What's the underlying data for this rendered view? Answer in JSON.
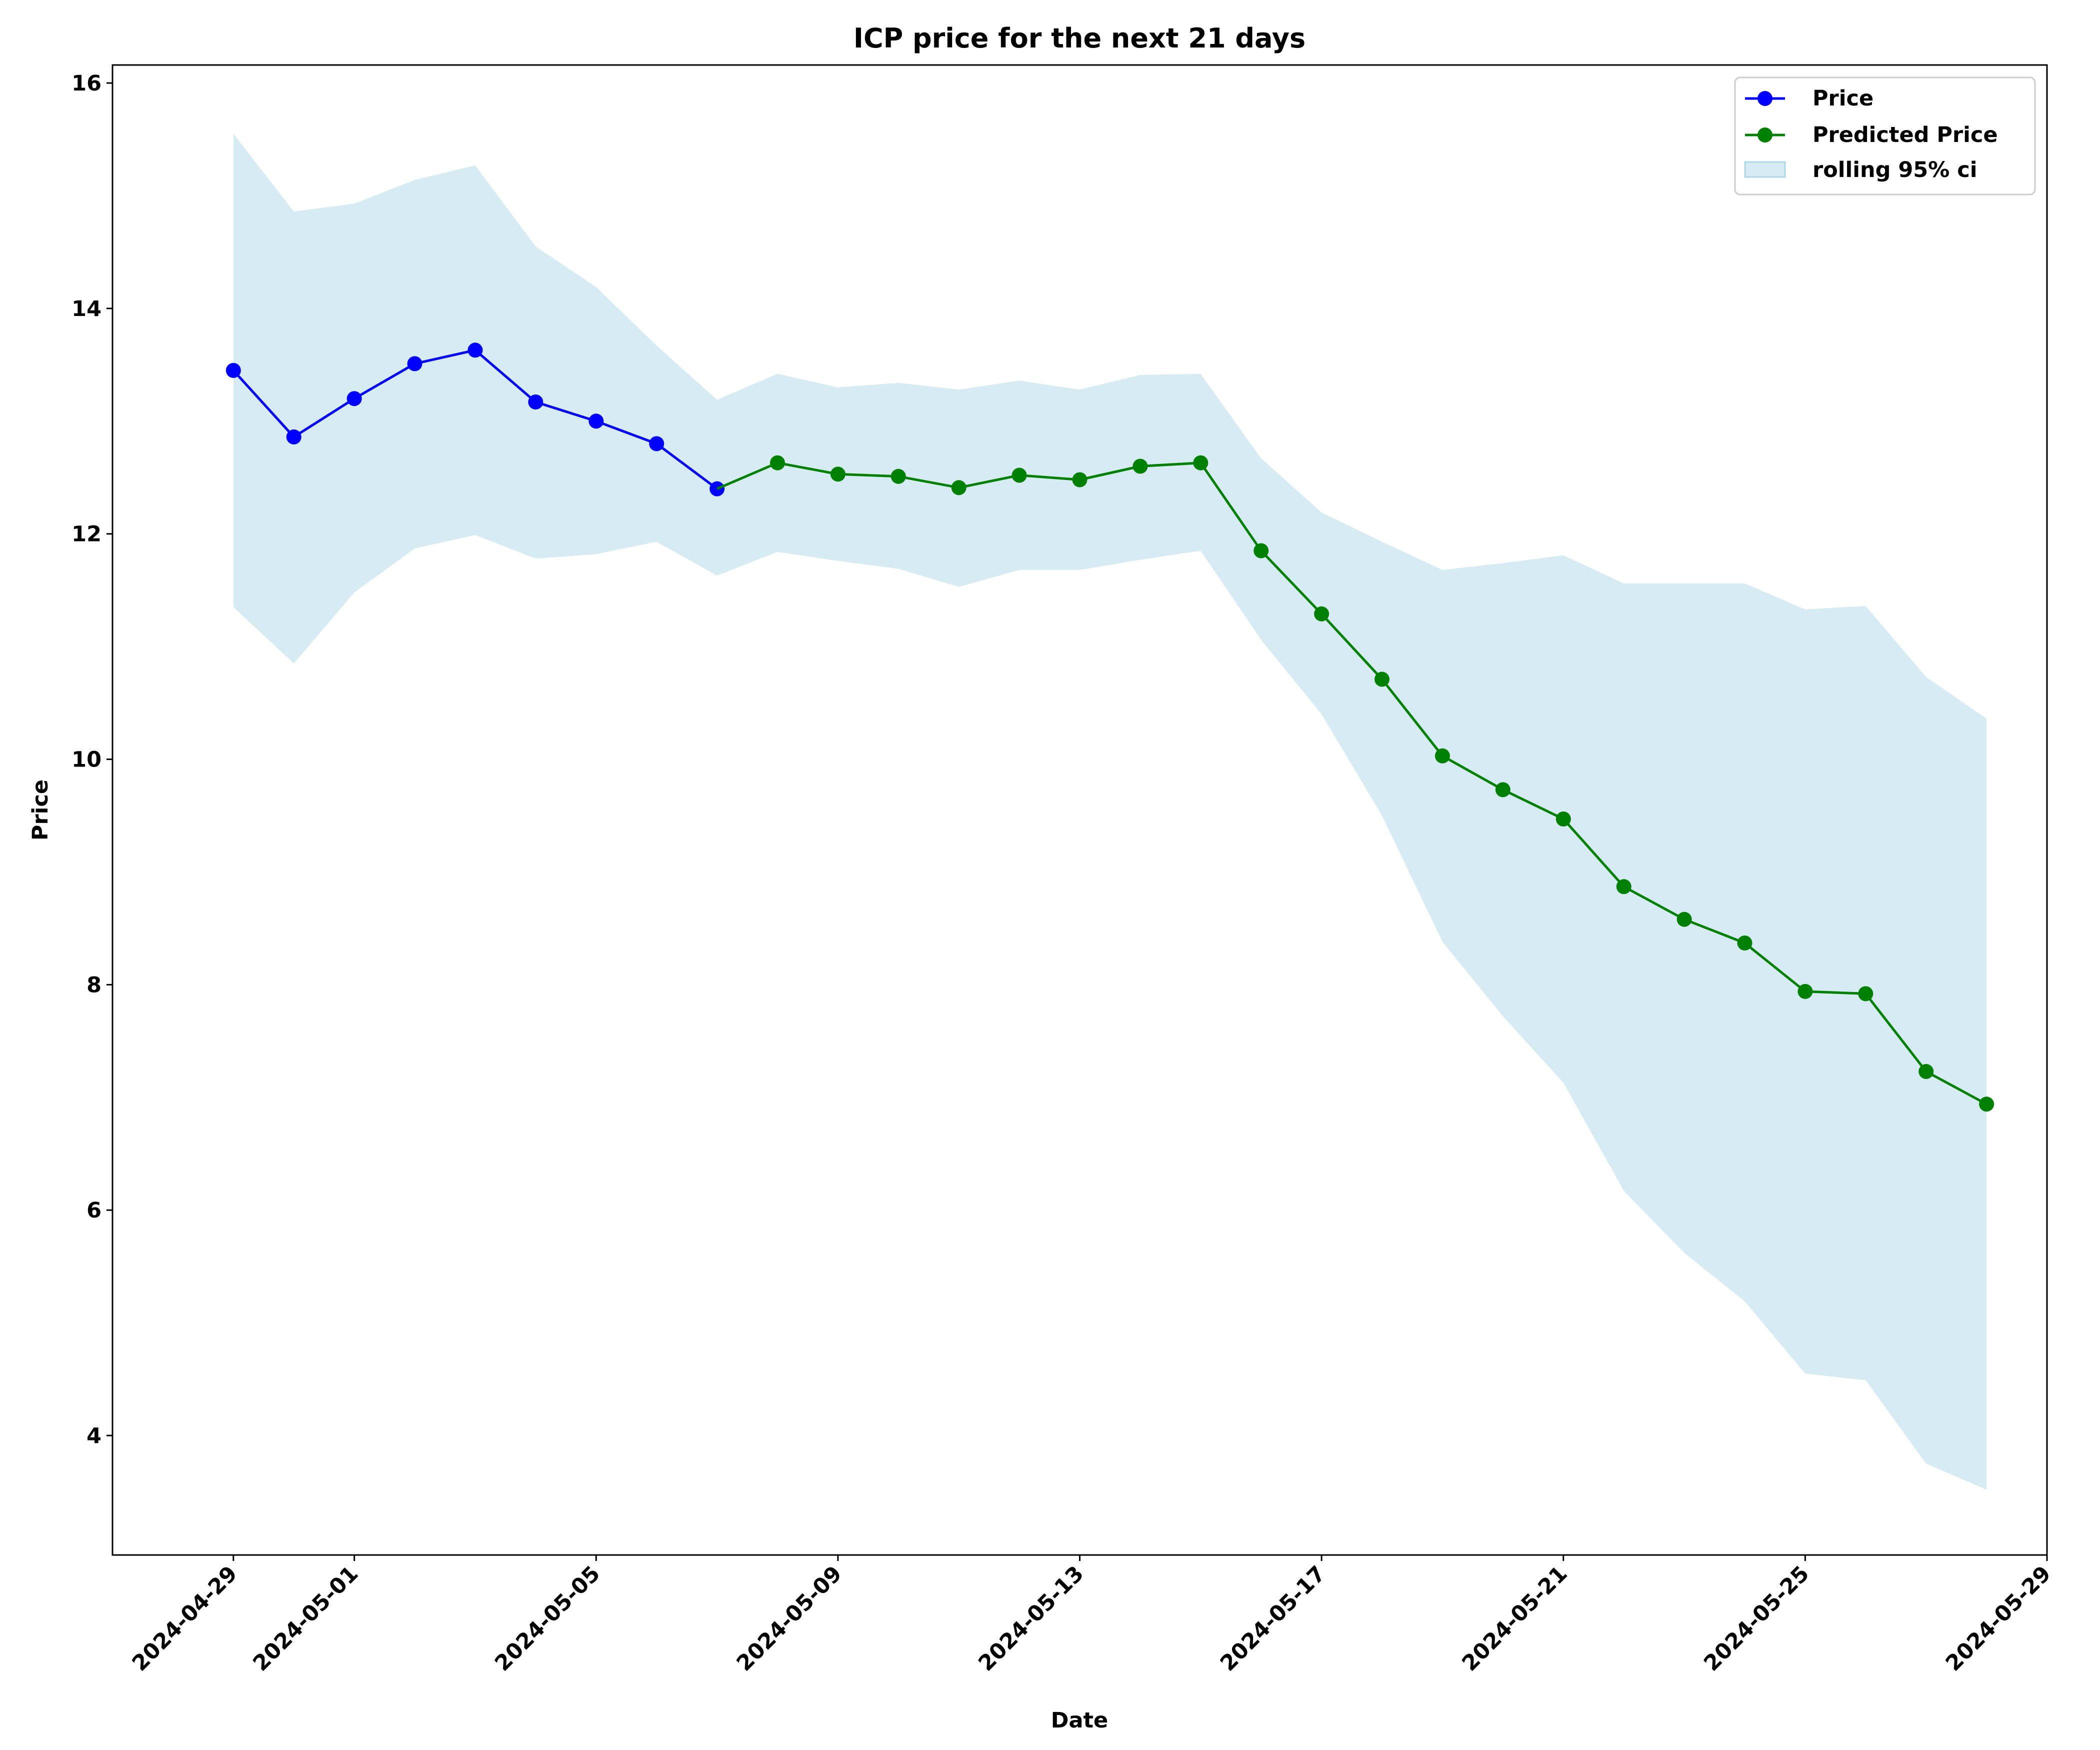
{
  "chart_data": {
    "type": "line",
    "title": "ICP price for the next 21 days",
    "xlabel": "Date",
    "ylabel": "Price",
    "ylim": [
      2.94,
      16.16
    ],
    "xlim": [
      "2024-04-27",
      "2024-05-29"
    ],
    "x_ticks": [
      "2024-04-29",
      "2024-05-01",
      "2024-05-05",
      "2024-05-09",
      "2024-05-13",
      "2024-05-17",
      "2024-05-21",
      "2024-05-25",
      "2024-05-29"
    ],
    "y_ticks": [
      4,
      6,
      8,
      10,
      12,
      14,
      16
    ],
    "grid": false,
    "legend_position": "top-right",
    "colors": {
      "price": "#0000ff",
      "predicted": "#008000",
      "ci": "#add8e6"
    },
    "series": [
      {
        "name": "Price",
        "x": [
          "2024-04-29",
          "2024-04-30",
          "2024-05-01",
          "2024-05-02",
          "2024-05-03",
          "2024-05-04",
          "2024-05-05",
          "2024-05-06",
          "2024-05-07"
        ],
        "values": [
          13.45,
          12.86,
          13.2,
          13.51,
          13.63,
          13.17,
          13.0,
          12.8,
          12.4
        ]
      },
      {
        "name": "Predicted Price",
        "x": [
          "2024-05-08",
          "2024-05-09",
          "2024-05-10",
          "2024-05-11",
          "2024-05-12",
          "2024-05-13",
          "2024-05-14",
          "2024-05-15",
          "2024-05-16",
          "2024-05-17",
          "2024-05-18",
          "2024-05-19",
          "2024-05-20",
          "2024-05-21",
          "2024-05-22",
          "2024-05-23",
          "2024-05-24",
          "2024-05-25",
          "2024-05-26",
          "2024-05-27",
          "2024-05-28"
        ],
        "values": [
          12.63,
          12.53,
          12.51,
          12.41,
          12.52,
          12.48,
          12.6,
          12.63,
          11.85,
          11.29,
          10.71,
          10.03,
          9.73,
          9.47,
          8.87,
          8.58,
          8.37,
          7.94,
          7.92,
          7.23,
          6.94
        ]
      }
    ],
    "ci": {
      "name": "rolling 95% ci",
      "x": [
        "2024-04-29",
        "2024-04-30",
        "2024-05-01",
        "2024-05-02",
        "2024-05-03",
        "2024-05-04",
        "2024-05-05",
        "2024-05-06",
        "2024-05-07",
        "2024-05-08",
        "2024-05-09",
        "2024-05-10",
        "2024-05-11",
        "2024-05-12",
        "2024-05-13",
        "2024-05-14",
        "2024-05-15",
        "2024-05-16",
        "2024-05-17",
        "2024-05-18",
        "2024-05-19",
        "2024-05-20",
        "2024-05-21",
        "2024-05-22",
        "2024-05-23",
        "2024-05-24",
        "2024-05-25",
        "2024-05-26",
        "2024-05-27",
        "2024-05-28"
      ],
      "upper": [
        15.55,
        14.86,
        14.93,
        15.14,
        15.27,
        14.55,
        14.19,
        13.67,
        13.19,
        13.42,
        13.3,
        13.34,
        13.28,
        13.36,
        13.28,
        13.41,
        13.42,
        12.67,
        12.19,
        11.93,
        11.68,
        11.74,
        11.81,
        11.56,
        11.56,
        11.56,
        11.33,
        11.36,
        10.73,
        10.36
      ],
      "lower": [
        11.35,
        10.85,
        11.48,
        11.87,
        11.99,
        11.78,
        11.82,
        11.93,
        11.63,
        11.84,
        11.76,
        11.69,
        11.53,
        11.68,
        11.68,
        11.77,
        11.85,
        11.06,
        10.4,
        9.5,
        8.38,
        7.72,
        7.13,
        6.17,
        5.62,
        5.19,
        4.55,
        4.49,
        3.75,
        3.52
      ]
    }
  }
}
